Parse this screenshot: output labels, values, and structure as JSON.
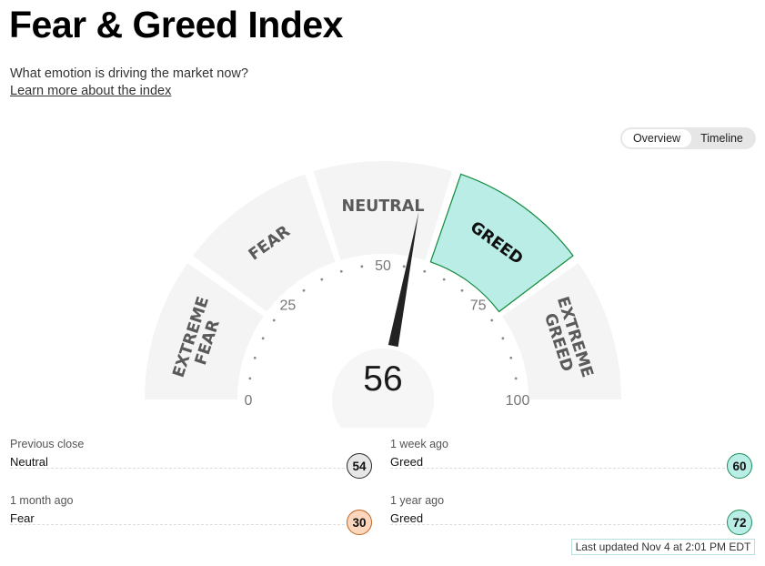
{
  "header": {
    "title": "Fear & Greed Index",
    "subtitle": "What emotion is driving the market now?",
    "learn_more": "Learn more about the index"
  },
  "view_toggle": {
    "options": [
      "Overview",
      "Timeline"
    ],
    "selected": "Overview"
  },
  "gauge": {
    "value": 56,
    "value_text": "56",
    "active_zone": "GREED",
    "zones": [
      {
        "id": "extreme-fear",
        "lines": [
          "EXTREME",
          "FEAR"
        ]
      },
      {
        "id": "fear",
        "lines": [
          "FEAR"
        ]
      },
      {
        "id": "neutral",
        "lines": [
          "NEUTRAL"
        ]
      },
      {
        "id": "greed",
        "lines": [
          "GREED"
        ]
      },
      {
        "id": "extreme-greed",
        "lines": [
          "EXTREME",
          "GREED"
        ]
      }
    ],
    "ticks": [
      "0",
      "25",
      "50",
      "75",
      "100"
    ],
    "colors": {
      "zone_bg": "#f4f4f4",
      "active_fill": "#b9ede6",
      "active_stroke": "#14893e",
      "zone_text": "#5a5a5a",
      "active_text": "#111111",
      "needle": "#222222"
    }
  },
  "history": [
    {
      "label": "Previous close",
      "value": "Neutral",
      "score": "54",
      "badge_bg": "#e6e6e6",
      "badge_border": "#2a2a2a"
    },
    {
      "label": "1 week ago",
      "value": "Greed",
      "score": "60",
      "badge_bg": "#b9ede6",
      "badge_border": "#1f8f5a"
    },
    {
      "label": "1 month ago",
      "value": "Fear",
      "score": "30",
      "badge_bg": "#fcd6bd",
      "badge_border": "#c0631f"
    },
    {
      "label": "1 year ago",
      "value": "Greed",
      "score": "72",
      "badge_bg": "#b9ede6",
      "badge_border": "#1f8f5a"
    }
  ],
  "last_updated": "Last updated Nov 4 at 2:01 PM EDT"
}
